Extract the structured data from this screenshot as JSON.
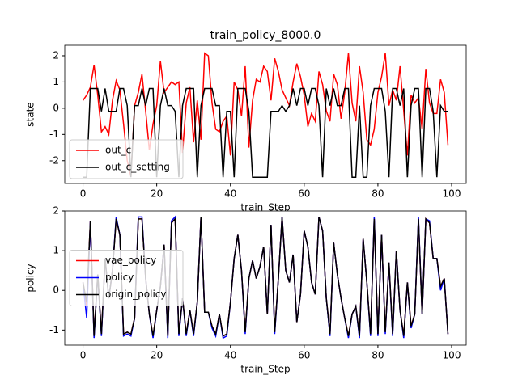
{
  "chart_data": [
    {
      "type": "line",
      "title": "train_policy_8000.0",
      "xlabel": "train_Step",
      "ylabel": "state",
      "x": [
        0,
        1,
        2,
        3,
        4,
        5,
        6,
        7,
        8,
        9,
        10,
        11,
        12,
        13,
        14,
        15,
        16,
        17,
        18,
        19,
        20,
        21,
        22,
        23,
        24,
        25,
        26,
        27,
        28,
        29,
        30,
        31,
        32,
        33,
        34,
        35,
        36,
        37,
        38,
        39,
        40,
        41,
        42,
        43,
        44,
        45,
        46,
        47,
        48,
        49,
        50,
        51,
        52,
        53,
        54,
        55,
        56,
        57,
        58,
        59,
        60,
        61,
        62,
        63,
        64,
        65,
        66,
        67,
        68,
        69,
        70,
        71,
        72,
        73,
        74,
        75,
        76,
        77,
        78,
        79,
        80,
        81,
        82,
        83,
        84,
        85,
        86,
        87,
        88,
        89,
        90,
        91,
        92,
        93,
        94,
        95,
        96,
        97,
        98,
        99
      ],
      "xlim": [
        -4.95,
        103.95
      ],
      "xticks": [
        0,
        20,
        40,
        60,
        80,
        100
      ],
      "ylim": [
        -2.87,
        2.4
      ],
      "yticks": [
        -2,
        -1,
        0,
        1,
        2
      ],
      "legend": "lower left",
      "series": [
        {
          "name": "out_c",
          "color": "#ff0000",
          "values": [
            0.3,
            0.5,
            0.8,
            1.65,
            0.5,
            -0.9,
            -0.7,
            -1.0,
            0.3,
            1.05,
            0.7,
            -0.6,
            -2.0,
            -2.6,
            0.1,
            0.6,
            1.3,
            -0.1,
            -1.6,
            -0.6,
            0.1,
            1.8,
            0.6,
            0.8,
            1.0,
            0.9,
            1.0,
            -1.7,
            0.2,
            0.8,
            -1.3,
            0.3,
            -1.2,
            2.1,
            2.0,
            0.2,
            -0.8,
            -0.9,
            -0.5,
            -0.3,
            -1.8,
            1.0,
            0.7,
            -0.3,
            1.6,
            -1.5,
            0.3,
            1.1,
            1.0,
            1.6,
            1.4,
            0.3,
            1.9,
            1.4,
            0.7,
            0.4,
            0.1,
            1.0,
            1.7,
            1.2,
            0.5,
            -0.7,
            -0.2,
            -0.5,
            1.4,
            0.9,
            -0.1,
            -0.5,
            1.3,
            0.9,
            -0.4,
            0.6,
            2.1,
            0.2,
            -0.5,
            1.6,
            0.6,
            -1.2,
            -1.4,
            -0.8,
            0.6,
            1.2,
            2.1,
            0.1,
            0.7,
            0.3,
            1.6,
            -0.1,
            -1.8,
            0.5,
            0.2,
            0.4,
            -0.8,
            1.5,
            0.2,
            -0.2,
            -0.2,
            1.1,
            0.6,
            -1.4
          ]
        },
        {
          "name": "out_c_setting",
          "color": "#000000",
          "values": [
            -2.63,
            -2.63,
            0.75,
            0.75,
            0.75,
            -0.12,
            0.75,
            -0.12,
            -0.12,
            -0.12,
            0.75,
            0.75,
            0.1,
            -2.63,
            0.1,
            0.1,
            0.75,
            0.1,
            0.75,
            0.75,
            -2.63,
            0.1,
            0.75,
            0.1,
            0.1,
            -0.12,
            -2.63,
            0.1,
            0.75,
            0.75,
            0.75,
            -2.63,
            0.1,
            0.75,
            0.75,
            0.75,
            0.1,
            0.1,
            -2.63,
            -0.12,
            -0.12,
            -2.63,
            0.75,
            0.75,
            0.75,
            -0.12,
            -2.63,
            -2.63,
            -2.63,
            -2.63,
            -2.63,
            -0.12,
            -0.12,
            -0.12,
            0.1,
            -0.12,
            0.1,
            0.75,
            0.1,
            0.75,
            0.75,
            0.1,
            0.75,
            0.75,
            0.1,
            -2.63,
            0.75,
            0.1,
            0.75,
            0.1,
            0.1,
            0.75,
            0.75,
            -2.63,
            -2.63,
            0.1,
            -2.63,
            -2.63,
            0.1,
            0.75,
            0.75,
            0.75,
            -0.12,
            -2.63,
            0.75,
            0.75,
            0.1,
            0.75,
            -2.63,
            0.1,
            0.75,
            0.75,
            -2.63,
            0.75,
            0.75,
            -0.12,
            -2.63,
            0.1,
            -0.12,
            -0.12
          ]
        }
      ]
    },
    {
      "type": "line",
      "xlabel": "train_Step",
      "ylabel": "policy",
      "x": [
        0,
        1,
        2,
        3,
        4,
        5,
        6,
        7,
        8,
        9,
        10,
        11,
        12,
        13,
        14,
        15,
        16,
        17,
        18,
        19,
        20,
        21,
        22,
        23,
        24,
        25,
        26,
        27,
        28,
        29,
        30,
        31,
        32,
        33,
        34,
        35,
        36,
        37,
        38,
        39,
        40,
        41,
        42,
        43,
        44,
        45,
        46,
        47,
        48,
        49,
        50,
        51,
        52,
        53,
        54,
        55,
        56,
        57,
        58,
        59,
        60,
        61,
        62,
        63,
        64,
        65,
        66,
        67,
        68,
        69,
        70,
        71,
        72,
        73,
        74,
        75,
        76,
        77,
        78,
        79,
        80,
        81,
        82,
        83,
        84,
        85,
        86,
        87,
        88,
        89,
        90,
        91,
        92,
        93,
        94,
        95,
        96,
        97,
        98,
        99
      ],
      "xlim": [
        -4.95,
        103.95
      ],
      "xticks": [
        0,
        20,
        40,
        60,
        80,
        100
      ],
      "ylim": [
        -1.38,
        2.0
      ],
      "yticks": [
        -1,
        0,
        1,
        2
      ],
      "legend": "center left",
      "series": [
        {
          "name": "vae_policy",
          "color": "#ff0000",
          "values": [
            0.2,
            -0.4,
            1.75,
            -1.15,
            0.4,
            -1.1,
            0.8,
            -0.2,
            0.5,
            1.8,
            1.4,
            -1.1,
            -1.05,
            -1.1,
            -0.7,
            1.8,
            1.8,
            0.3,
            -0.6,
            -1.15,
            -0.5,
            0.1,
            1.15,
            -1.15,
            1.7,
            1.8,
            -1.1,
            -0.2,
            -1.1,
            -0.5,
            -1.1,
            -0.3,
            1.85,
            -0.55,
            -0.55,
            -0.9,
            -1.1,
            -0.6,
            -1.15,
            -1.1,
            -0.3,
            0.8,
            1.4,
            0.5,
            -1.05,
            0.3,
            0.75,
            0.3,
            0.6,
            1.1,
            -0.6,
            1.65,
            -1.05,
            0.3,
            1.85,
            0.5,
            0.2,
            0.9,
            -0.8,
            -0.1,
            1.5,
            1.1,
            0.2,
            -0.1,
            1.85,
            1.5,
            -0.2,
            -1.1,
            1.2,
            0.4,
            -0.2,
            -0.7,
            -1.15,
            -0.6,
            -0.4,
            -1.15,
            1.3,
            0.2,
            -1.1,
            1.8,
            -1.1,
            1.4,
            -1.05,
            0.7,
            -1.1,
            1.0,
            -0.5,
            -1.15,
            0.2,
            -0.9,
            -0.6,
            1.8,
            -0.6,
            1.8,
            1.7,
            0.8,
            0.8,
            0.1,
            0.3,
            -1.1
          ]
        },
        {
          "name": "policy",
          "color": "#0000ff",
          "values": [
            0.2,
            -0.7,
            1.75,
            -1.2,
            0.4,
            -1.15,
            0.8,
            -0.2,
            0.5,
            1.85,
            1.4,
            -1.15,
            -1.1,
            -1.15,
            -0.7,
            1.85,
            1.85,
            0.3,
            -0.6,
            -1.2,
            -0.5,
            0.1,
            1.15,
            -1.2,
            1.75,
            1.85,
            -1.15,
            -0.2,
            -1.15,
            -0.5,
            -1.15,
            -0.3,
            1.85,
            -0.55,
            -0.55,
            -0.95,
            -1.15,
            -0.6,
            -1.2,
            -1.15,
            -0.3,
            0.8,
            1.4,
            0.5,
            -1.1,
            0.3,
            0.75,
            0.3,
            0.6,
            1.1,
            -0.6,
            1.65,
            -1.1,
            0.3,
            1.85,
            0.5,
            0.2,
            0.9,
            -0.8,
            -0.1,
            1.5,
            1.1,
            0.2,
            -0.1,
            1.85,
            1.5,
            -0.2,
            -1.15,
            1.2,
            0.4,
            -0.2,
            -0.7,
            -1.2,
            -0.6,
            -0.4,
            -1.2,
            1.3,
            0.2,
            -1.15,
            1.85,
            -1.15,
            1.4,
            -1.1,
            0.7,
            -1.15,
            1.0,
            -0.5,
            -1.2,
            0.2,
            -0.95,
            -0.6,
            1.85,
            -0.6,
            1.8,
            1.75,
            0.8,
            0.8,
            0.0,
            0.3,
            -1.1
          ]
        },
        {
          "name": "origin_policy",
          "color": "#000000",
          "values": [
            0.2,
            -0.3,
            1.75,
            -1.15,
            0.4,
            -1.1,
            0.8,
            -0.2,
            0.5,
            1.8,
            1.4,
            -1.1,
            -1.05,
            -1.1,
            -0.7,
            1.8,
            1.8,
            0.3,
            -0.6,
            -1.15,
            -0.5,
            0.1,
            1.15,
            -1.15,
            1.7,
            1.8,
            -1.1,
            -0.2,
            -1.1,
            -0.5,
            -1.1,
            -0.3,
            1.85,
            -0.55,
            -0.55,
            -0.9,
            -1.1,
            -0.6,
            -1.15,
            -1.1,
            -0.3,
            0.8,
            1.4,
            0.5,
            -1.05,
            0.3,
            0.75,
            0.3,
            0.6,
            1.1,
            -0.6,
            1.65,
            -1.05,
            0.3,
            1.85,
            0.5,
            0.2,
            0.9,
            -0.8,
            -0.1,
            1.5,
            1.1,
            0.2,
            -0.1,
            1.85,
            1.5,
            -0.2,
            -1.1,
            1.2,
            0.4,
            -0.2,
            -0.7,
            -1.15,
            -0.6,
            -0.4,
            -1.15,
            1.3,
            0.2,
            -1.1,
            1.8,
            -1.1,
            1.4,
            -1.05,
            0.7,
            -1.1,
            1.0,
            -0.5,
            -1.15,
            0.2,
            -0.9,
            -0.6,
            1.8,
            -0.6,
            1.8,
            1.7,
            0.8,
            0.8,
            0.1,
            0.3,
            -1.1
          ]
        }
      ]
    }
  ]
}
